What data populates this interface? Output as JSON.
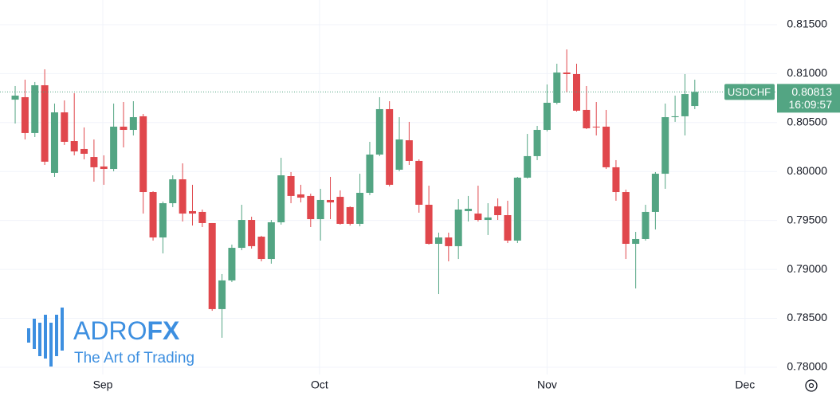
{
  "chart_data": {
    "type": "candlestick",
    "symbol": "USDCHF",
    "last_price": 0.80813,
    "countdown": "16:09:57",
    "up_color": "#53a583",
    "down_color": "#e0474c",
    "ylim": [
      0.77926,
      0.81752
    ],
    "yticks": [
      {
        "value": 0.78,
        "label": "0.78000"
      },
      {
        "value": 0.785,
        "label": "0.78500"
      },
      {
        "value": 0.79,
        "label": "0.79000"
      },
      {
        "value": 0.795,
        "label": "0.79500"
      },
      {
        "value": 0.8,
        "label": "0.80000"
      },
      {
        "value": 0.805,
        "label": "0.80500"
      },
      {
        "value": 0.81,
        "label": "0.81000"
      },
      {
        "value": 0.815,
        "label": "0.81500"
      }
    ],
    "xlim": [
      -1.54,
      77.35
    ],
    "xticks": [
      {
        "value": 8.9,
        "label": "Sep"
      },
      {
        "value": 30.9,
        "label": "Oct"
      },
      {
        "value": 54.0,
        "label": "Nov"
      },
      {
        "value": 74.1,
        "label": "Dec"
      }
    ],
    "grid": true,
    "open": [
      0.80734,
      0.80759,
      0.80393,
      0.80881,
      0.79986,
      0.80604,
      0.80311,
      0.8023,
      0.80148,
      0.80051,
      0.80026,
      0.80458,
      0.80425,
      0.80564,
      0.7979,
      0.79326,
      0.79676,
      0.7992,
      0.79595,
      0.79587,
      0.79473,
      0.78594,
      0.78887,
      0.7922,
      0.79505,
      0.79334,
      0.79106,
      0.79481,
      0.79953,
      0.79766,
      0.7975,
      0.79513,
      0.79709,
      0.79741,
      0.79636,
      0.79465,
      0.79782,
      0.80173,
      0.80637,
      0.80018,
      0.80319,
      0.80108,
      0.7966,
      0.79261,
      0.79326,
      0.79237,
      0.79595,
      0.7957,
      0.79505,
      0.79644,
      0.79554,
      0.79294,
      0.79937,
      0.80157,
      0.80425,
      0.80702,
      0.81011,
      0.80995,
      0.80629,
      0.80458,
      0.80458,
      0.80043,
      0.7979,
      0.79261,
      0.7931,
      0.79587,
      0.79977,
      0.80555,
      0.80564,
      0.80669
    ],
    "high": [
      0.80873,
      0.80938,
      0.80914,
      0.81044,
      0.80694,
      0.80726,
      0.808,
      0.8045,
      0.80327,
      0.80165,
      0.80694,
      0.8071,
      0.80718,
      0.80588,
      0.79798,
      0.79693,
      0.79961,
      0.80083,
      0.79864,
      0.79611,
      0.79473,
      0.78952,
      0.79253,
      0.7966,
      0.79538,
      0.79343,
      0.79505,
      0.8014,
      0.79994,
      0.79864,
      0.79774,
      0.79823,
      0.79945,
      0.79807,
      0.79644,
      0.79977,
      0.80303,
      0.80759,
      0.80718,
      0.80555,
      0.80507,
      0.80124,
      0.79855,
      0.79375,
      0.79375,
      0.79717,
      0.7975,
      0.79855,
      0.79676,
      0.79725,
      0.79701,
      0.79945,
      0.80384,
      0.80466,
      0.80889,
      0.81101,
      0.81247,
      0.81101,
      0.80873,
      0.8071,
      0.80629,
      0.80116,
      0.79815,
      0.79383,
      0.7966,
      0.79994,
      0.80694,
      0.80775,
      0.80995,
      0.80938
    ],
    "low": [
      0.8049,
      0.80327,
      0.80352,
      0.80067,
      0.79945,
      0.80271,
      0.80165,
      0.80124,
      0.79896,
      0.79864,
      0.80002,
      0.80246,
      0.80368,
      0.7957,
      0.79294,
      0.79163,
      0.79636,
      0.79489,
      0.79448,
      0.79432,
      0.78577,
      0.78301,
      0.7887,
      0.79196,
      0.79212,
      0.79082,
      0.79058,
      0.79457,
      0.79676,
      0.79684,
      0.79432,
      0.79294,
      0.79513,
      0.79457,
      0.79448,
      0.7944,
      0.79758,
      0.80157,
      0.79847,
      0.80002,
      0.80067,
      0.79579,
      0.79253,
      0.78748,
      0.79082,
      0.79106,
      0.79489,
      0.79489,
      0.79351,
      0.79505,
      0.79269,
      0.79269,
      0.79929,
      0.80116,
      0.80409,
      0.80686,
      0.80808,
      0.80612,
      0.80433,
      0.80368,
      0.80026,
      0.79701,
      0.79106,
      0.78805,
      0.79294,
      0.79408,
      0.79823,
      0.80507,
      0.80368,
      0.80637
    ],
    "close": [
      0.80775,
      0.80393,
      0.80881,
      0.801,
      0.80604,
      0.80303,
      0.80205,
      0.80181,
      0.80043,
      0.80026,
      0.80458,
      0.80425,
      0.80555,
      0.7979,
      0.79326,
      0.79676,
      0.7992,
      0.7957,
      0.7957,
      0.79473,
      0.78594,
      0.78887,
      0.7922,
      0.79505,
      0.79237,
      0.79106,
      0.79481,
      0.79961,
      0.7975,
      0.79733,
      0.79513,
      0.79709,
      0.79684,
      0.79465,
      0.79465,
      0.79782,
      0.80173,
      0.80637,
      0.79864,
      0.80327,
      0.80108,
      0.7966,
      0.79261,
      0.79326,
      0.79237,
      0.79611,
      0.79619,
      0.79505,
      0.7953,
      0.79554,
      0.79294,
      0.79937,
      0.80157,
      0.80425,
      0.80702,
      0.81011,
      0.80995,
      0.80621,
      0.80441,
      0.8045,
      0.80043,
      0.7979,
      0.79261,
      0.7931,
      0.79587,
      0.79977,
      0.80555,
      0.80564,
      0.80791,
      0.80813
    ]
  },
  "logo": {
    "brand_a": "ADRO",
    "brand_b": "FX",
    "tagline": "The Art of Trading"
  }
}
